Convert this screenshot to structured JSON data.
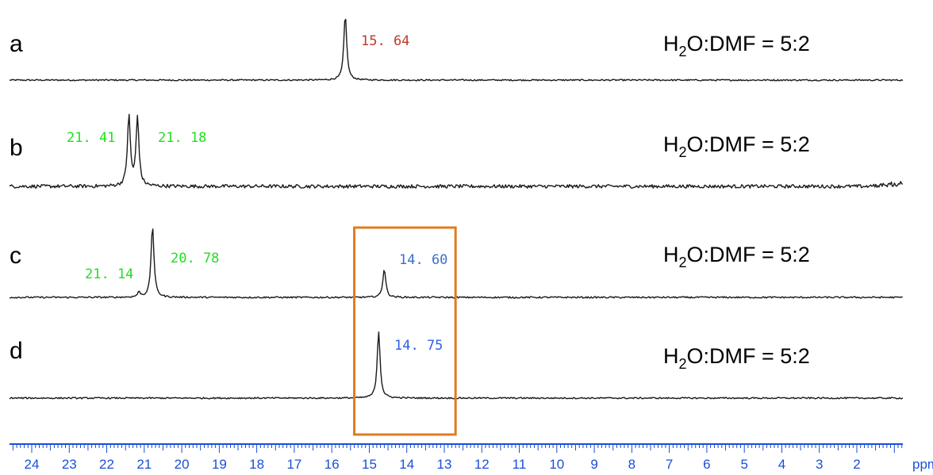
{
  "colors": {
    "trace": "#1a1a1a",
    "axis": "#1a4fd6",
    "label_red": "#c0392b",
    "label_green": "#22dd22",
    "label_blue": "#3a6fc9",
    "label_blue2": "#2f5fe6",
    "highlight_box": "#e07b22"
  },
  "chart_data": {
    "type": "line",
    "xlabel": "ppm",
    "x_unit": "ppm",
    "xlim": [
      24.6,
      0.5
    ],
    "x_reversed": true,
    "x_ticks": [
      "24",
      "23",
      "22",
      "21",
      "20",
      "19",
      "18",
      "17",
      "16",
      "15",
      "14",
      "13",
      "12",
      "11",
      "10",
      "9",
      "8",
      "7",
      "6",
      "5",
      "4",
      "3",
      "2"
    ],
    "highlight_region": {
      "from": 15.4,
      "to": 12.7,
      "color": "#e07b22"
    },
    "spectra": [
      {
        "label": "a",
        "condition": {
          "prefix": "H",
          "subscript": "2",
          "suffix": "O:DMF = 5:2"
        },
        "noise": 0.9,
        "peaks": [
          {
            "ppm": 15.64,
            "height": 82,
            "width": 0.05,
            "label": "15. 64",
            "color": "#c0392b"
          }
        ]
      },
      {
        "label": "b",
        "condition": {
          "prefix": "H",
          "subscript": "2",
          "suffix": "O:DMF = 5:2"
        },
        "noise": 2.2,
        "peaks": [
          {
            "ppm": 21.41,
            "height": 88,
            "width": 0.04,
            "label": "21. 41",
            "color": "#22dd22"
          },
          {
            "ppm": 21.18,
            "height": 86,
            "width": 0.04,
            "label": "21. 18",
            "color": "#22dd22"
          }
        ]
      },
      {
        "label": "c",
        "condition": {
          "prefix": "H",
          "subscript": "2",
          "suffix": "O:DMF = 5:2"
        },
        "noise": 1.0,
        "peaks": [
          {
            "ppm": 21.14,
            "height": 6,
            "width": 0.04,
            "label": "21. 14",
            "color": "#22dd22"
          },
          {
            "ppm": 20.78,
            "height": 90,
            "width": 0.04,
            "label": "20. 78",
            "color": "#22dd22"
          },
          {
            "ppm": 14.6,
            "height": 36,
            "width": 0.05,
            "label": "14. 60",
            "color": "#3a6fc9"
          }
        ]
      },
      {
        "label": "d",
        "condition": {
          "prefix": "H",
          "subscript": "2",
          "suffix": "O:DMF = 5:2"
        },
        "noise": 0.9,
        "peaks": [
          {
            "ppm": 14.75,
            "height": 84,
            "width": 0.035,
            "label": "14. 75",
            "color": "#2f5fe6"
          }
        ]
      }
    ]
  }
}
